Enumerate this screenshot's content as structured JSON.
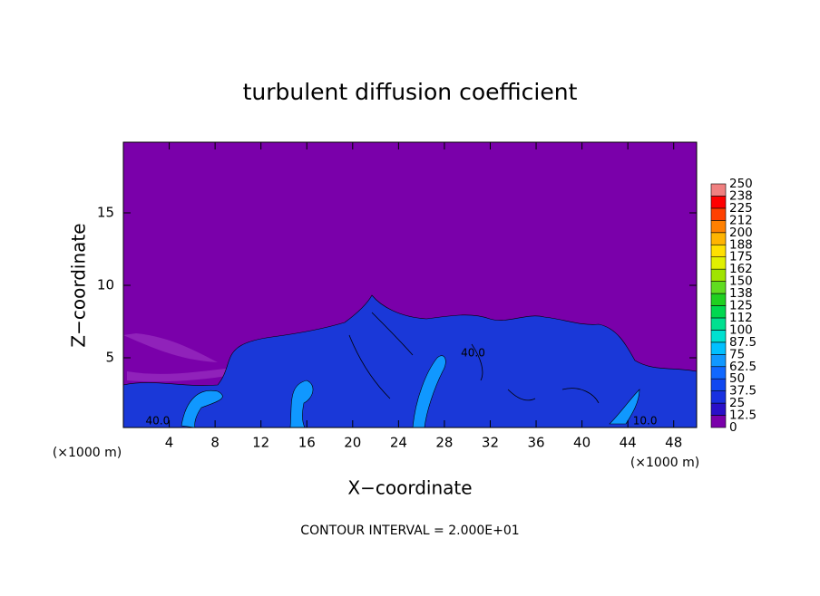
{
  "chart_data": {
    "type": "contour",
    "title": "turbulent diffusion coefficient",
    "xlabel": "X−coordinate",
    "ylabel": "Z−coordinate",
    "xunits": [
      "(×1000 m)",
      "(×1000 m)"
    ],
    "xlim": [
      0,
      50
    ],
    "ylim": [
      0,
      20
    ],
    "xticks": [
      4,
      8,
      12,
      16,
      20,
      24,
      28,
      32,
      36,
      40,
      44,
      48
    ],
    "yticks": [
      5,
      10,
      15
    ],
    "background_color": "#7a00aa",
    "contour_labels": [
      {
        "text": "40.0",
        "x": 3,
        "y": 0.3
      },
      {
        "text": "40.0",
        "x": 30.5,
        "y": 5
      },
      {
        "text": "10.0",
        "x": 45.5,
        "y": 0.3
      }
    ],
    "footnote": "CONTOUR INTERVAL = 2.000E+01",
    "colorbar": {
      "levels": [
        0,
        12.5,
        25,
        37.5,
        50,
        62.5,
        75,
        87.5,
        100,
        112,
        125,
        138,
        150,
        162,
        175,
        188,
        200,
        212,
        225,
        238,
        250
      ],
      "colors": [
        "#7a00aa",
        "#2a10c8",
        "#1830e0",
        "#1048f0",
        "#1068ff",
        "#1098ff",
        "#00c0ff",
        "#00e0d0",
        "#00e090",
        "#00d850",
        "#20d020",
        "#60dc20",
        "#a0e400",
        "#e0f000",
        "#ffe000",
        "#ffb400",
        "#ff8000",
        "#ff4000",
        "#ff0000",
        "#f08080"
      ]
    }
  }
}
